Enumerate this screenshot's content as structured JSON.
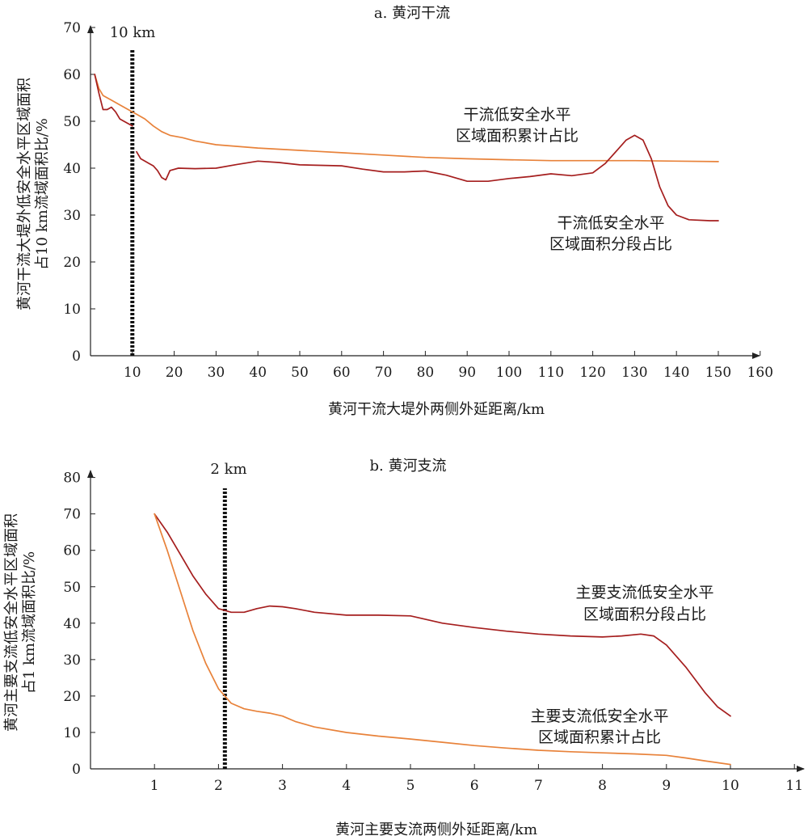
{
  "chart_data": [
    {
      "type": "line",
      "title": "a. 黄河干流",
      "xlabel": "黄河干流大堤外两侧外延距离/km",
      "ylabel_line1": "黄河干流大堤外低安全水平区域面积",
      "ylabel_line2": "占10 km流域面积比/%",
      "xlim": [
        0,
        160
      ],
      "ylim": [
        0,
        70
      ],
      "xticks": [
        10,
        20,
        30,
        40,
        50,
        60,
        70,
        80,
        90,
        100,
        110,
        120,
        130,
        140,
        150,
        160
      ],
      "yticks": [
        0,
        10,
        20,
        30,
        40,
        50,
        60,
        70
      ],
      "marker": {
        "x": 10,
        "label": "10 km"
      },
      "annotations": [
        {
          "line1": "干流低安全水平",
          "line2": "区域面积累计占比"
        },
        {
          "line1": "干流低安全水平",
          "line2": "区域面积分段占比"
        }
      ],
      "series": [
        {
          "color": "#e8823a",
          "segments": [
            [
              [
                1,
                60
              ],
              [
                2,
                57
              ],
              [
                3,
                55.5
              ],
              [
                5,
                54.5
              ],
              [
                7,
                53.5
              ],
              [
                9,
                52.5
              ],
              [
                11,
                51.5
              ],
              [
                13,
                50.5
              ],
              [
                15,
                49
              ],
              [
                17,
                47.8
              ],
              [
                19,
                47
              ],
              [
                22,
                46.5
              ],
              [
                25,
                45.8
              ],
              [
                30,
                45
              ],
              [
                40,
                44.3
              ],
              [
                50,
                43.8
              ],
              [
                60,
                43.3
              ],
              [
                70,
                42.8
              ],
              [
                80,
                42.3
              ],
              [
                90,
                42
              ],
              [
                100,
                41.8
              ],
              [
                110,
                41.6
              ],
              [
                120,
                41.6
              ],
              [
                130,
                41.6
              ],
              [
                140,
                41.5
              ],
              [
                150,
                41.4
              ]
            ]
          ]
        },
        {
          "color": "#a51e1e",
          "segments": [
            [
              [
                1,
                60
              ],
              [
                2,
                56
              ],
              [
                3,
                52.5
              ],
              [
                4,
                52.5
              ],
              [
                5,
                53
              ],
              [
                6,
                52
              ],
              [
                7,
                50.5
              ],
              [
                8,
                50
              ],
              [
                9,
                49.5
              ],
              [
                10,
                49
              ]
            ],
            [
              [
                11,
                43.5
              ],
              [
                12,
                42
              ],
              [
                13,
                41.5
              ],
              [
                14,
                41
              ],
              [
                15,
                40.5
              ],
              [
                16,
                39.5
              ],
              [
                17,
                38
              ],
              [
                18,
                37.5
              ],
              [
                19,
                39.5
              ],
              [
                21,
                40
              ],
              [
                25,
                39.9
              ],
              [
                30,
                40
              ],
              [
                35,
                40.8
              ],
              [
                40,
                41.5
              ],
              [
                45,
                41.2
              ],
              [
                50,
                40.7
              ],
              [
                55,
                40.6
              ],
              [
                60,
                40.5
              ],
              [
                65,
                39.8
              ],
              [
                70,
                39.2
              ],
              [
                75,
                39.2
              ],
              [
                80,
                39.4
              ],
              [
                85,
                38.5
              ],
              [
                90,
                37.2
              ],
              [
                95,
                37.2
              ],
              [
                100,
                37.8
              ],
              [
                105,
                38.2
              ],
              [
                110,
                38.8
              ],
              [
                115,
                38.4
              ],
              [
                120,
                39
              ],
              [
                123,
                41
              ],
              [
                126,
                44
              ],
              [
                128,
                46
              ],
              [
                130,
                47
              ],
              [
                132,
                46
              ],
              [
                134,
                42
              ],
              [
                136,
                36
              ],
              [
                138,
                32
              ],
              [
                140,
                30
              ],
              [
                143,
                29
              ],
              [
                148,
                28.8
              ],
              [
                150,
                28.8
              ]
            ]
          ]
        }
      ]
    },
    {
      "type": "line",
      "title": "b. 黄河支流",
      "xlabel": "黄河主要支流两侧外延距离/km",
      "ylabel_line1": "黄河主要支流低安全水平区域面积",
      "ylabel_line2": "占1 km流域面积比/%",
      "xlim": [
        0,
        11
      ],
      "ylim": [
        0,
        80
      ],
      "xticks": [
        1,
        2,
        3,
        4,
        5,
        6,
        7,
        8,
        9,
        10,
        11
      ],
      "yticks": [
        0,
        10,
        20,
        30,
        40,
        50,
        60,
        70,
        80
      ],
      "marker": {
        "x": 2.1,
        "label": "2 km"
      },
      "annotations": [
        {
          "line1": "主要支流低安全水平",
          "line2": "区域面积分段占比"
        },
        {
          "line1": "主要支流低安全水平",
          "line2": "区域面积累计占比"
        }
      ],
      "series": [
        {
          "color": "#a51e1e",
          "segments": [
            [
              [
                1,
                70
              ],
              [
                1.2,
                65
              ],
              [
                1.4,
                59
              ],
              [
                1.6,
                53
              ],
              [
                1.8,
                48
              ],
              [
                2,
                44
              ],
              [
                2.2,
                43
              ],
              [
                2.4,
                43
              ],
              [
                2.6,
                44
              ],
              [
                2.8,
                44.7
              ],
              [
                3,
                44.5
              ],
              [
                3.2,
                44
              ],
              [
                3.5,
                43
              ],
              [
                4,
                42.2
              ],
              [
                4.5,
                42.2
              ],
              [
                5,
                42
              ],
              [
                5.5,
                40
              ],
              [
                6,
                38.8
              ],
              [
                6.5,
                37.8
              ],
              [
                7,
                37
              ],
              [
                7.5,
                36.5
              ],
              [
                8,
                36.2
              ],
              [
                8.3,
                36.5
              ],
              [
                8.6,
                37
              ],
              [
                8.8,
                36.5
              ],
              [
                9,
                34
              ],
              [
                9.3,
                28
              ],
              [
                9.6,
                21
              ],
              [
                9.8,
                17
              ],
              [
                10,
                14.5
              ]
            ]
          ]
        },
        {
          "color": "#e8823a",
          "segments": [
            [
              [
                1,
                70
              ],
              [
                1.2,
                60
              ],
              [
                1.4,
                49
              ],
              [
                1.6,
                38
              ],
              [
                1.8,
                29
              ],
              [
                2,
                22
              ],
              [
                2.2,
                18
              ],
              [
                2.4,
                16.5
              ],
              [
                2.6,
                15.8
              ],
              [
                2.8,
                15.3
              ],
              [
                3,
                14.5
              ],
              [
                3.2,
                13
              ],
              [
                3.5,
                11.5
              ],
              [
                4,
                10
              ],
              [
                4.5,
                9
              ],
              [
                5,
                8.2
              ],
              [
                5.5,
                7.3
              ],
              [
                6,
                6.4
              ],
              [
                6.5,
                5.7
              ],
              [
                7,
                5.1
              ],
              [
                7.5,
                4.7
              ],
              [
                8,
                4.4
              ],
              [
                8.5,
                4.1
              ],
              [
                9,
                3.7
              ],
              [
                9.3,
                3
              ],
              [
                9.6,
                2.2
              ],
              [
                10,
                1.2
              ]
            ]
          ]
        }
      ]
    }
  ]
}
